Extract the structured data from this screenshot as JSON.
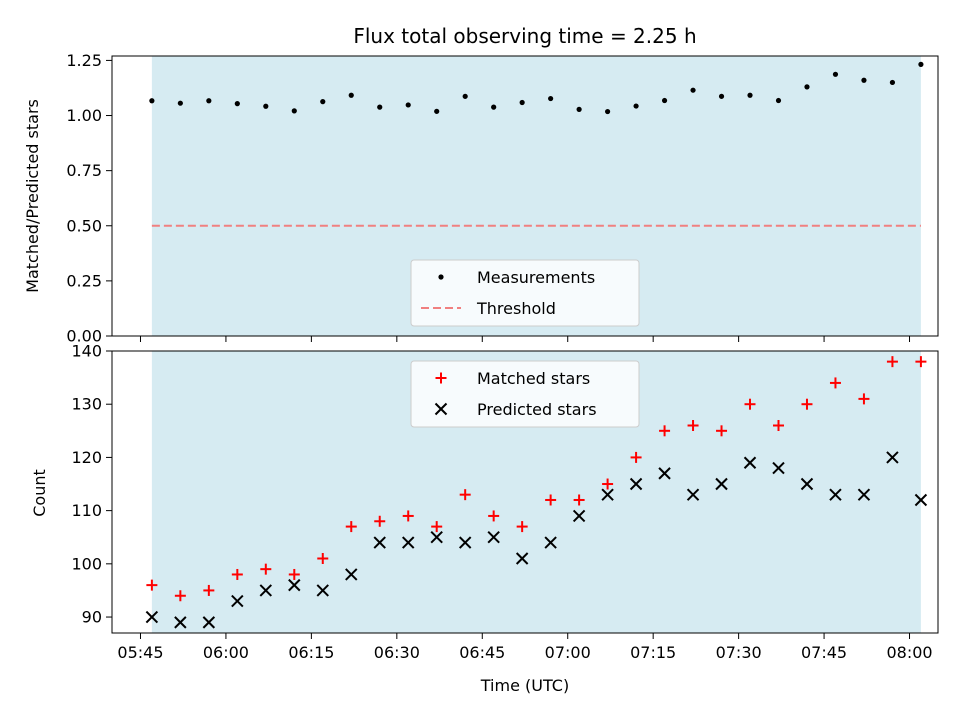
{
  "chart_data": {
    "title": "Flux total observing time = 2.25 h",
    "xlabel": "Time (UTC)",
    "x_ticks": [
      "05:45",
      "06:00",
      "06:15",
      "06:30",
      "06:45",
      "07:00",
      "07:15",
      "07:30",
      "07:45",
      "08:00"
    ],
    "x_range": [
      "05:40",
      "08:05"
    ],
    "observing_window": [
      "05:47",
      "08:02"
    ],
    "shade_color": "#add8e6",
    "times": [
      "05:47",
      "05:52",
      "05:57",
      "06:02",
      "06:07",
      "06:12",
      "06:17",
      "06:22",
      "06:27",
      "06:32",
      "06:37",
      "06:42",
      "06:47",
      "06:52",
      "06:57",
      "07:02",
      "07:07",
      "07:12",
      "07:17",
      "07:22",
      "07:27",
      "07:32",
      "07:37",
      "07:42",
      "07:47",
      "07:52",
      "07:57",
      "08:02"
    ],
    "panels": [
      {
        "type": "scatter",
        "ylabel": "Matched/Predicted stars",
        "ylim": [
          0,
          1.27
        ],
        "y_ticks": [
          "0.00",
          "0.25",
          "0.50",
          "0.75",
          "1.00",
          "1.25"
        ],
        "legend_position": "lower-center",
        "series": [
          {
            "name": "Measurements",
            "marker": "dot",
            "color": "#000000",
            "values": [
              1.067,
              1.056,
              1.067,
              1.054,
              1.042,
              1.021,
              1.063,
              1.092,
              1.038,
              1.048,
              1.019,
              1.087,
              1.038,
              1.059,
              1.077,
              1.028,
              1.018,
              1.043,
              1.068,
              1.115,
              1.087,
              1.092,
              1.068,
              1.13,
              1.187,
              1.16,
              1.15,
              1.232
            ]
          },
          {
            "name": "Threshold",
            "marker": "dashed-line",
            "color": "#f08080",
            "value": 0.5
          }
        ]
      },
      {
        "type": "scatter",
        "ylabel": "Count",
        "ylim": [
          87,
          140
        ],
        "y_ticks": [
          "90",
          "100",
          "110",
          "120",
          "130",
          "140"
        ],
        "legend_position": "top-center",
        "series": [
          {
            "name": "Matched stars",
            "marker": "plus",
            "color": "#ff0000",
            "values": [
              96,
              94,
              95,
              98,
              99,
              98,
              101,
              107,
              108,
              109,
              107,
              113,
              109,
              107,
              112,
              112,
              115,
              120,
              125,
              126,
              125,
              130,
              126,
              130,
              134,
              131,
              138,
              138
            ]
          },
          {
            "name": "Predicted stars",
            "marker": "x",
            "color": "#000000",
            "values": [
              90,
              89,
              89,
              93,
              95,
              96,
              95,
              98,
              104,
              104,
              105,
              104,
              105,
              101,
              104,
              109,
              113,
              115,
              117,
              113,
              115,
              119,
              118,
              115,
              113,
              113,
              120,
              112
            ]
          }
        ]
      }
    ]
  }
}
